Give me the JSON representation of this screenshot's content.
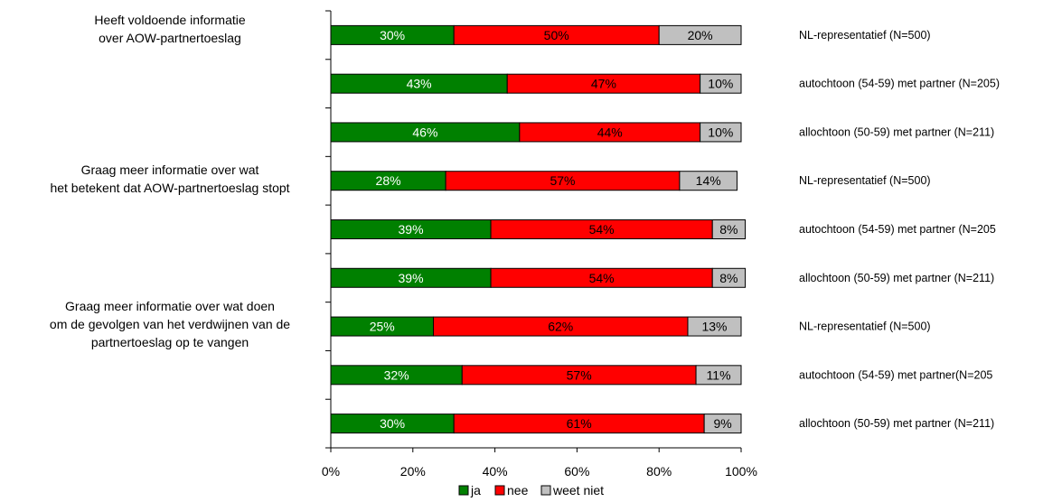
{
  "chart_data": {
    "type": "bar",
    "orientation": "horizontal",
    "stacked": "percent",
    "xlim": [
      0,
      100
    ],
    "x_ticks": [
      "0%",
      "20%",
      "40%",
      "60%",
      "80%",
      "100%"
    ],
    "question_labels": [
      [
        "Heeft voldoende informatie",
        "over AOW-partnertoeslag"
      ],
      [
        "Graag meer informatie over wat",
        "het betekent dat AOW-partnertoeslag stopt"
      ],
      [
        "Graag meer informatie over wat doen",
        "om de gevolgen van het verdwijnen van de",
        "partnertoeslag op te vangen"
      ]
    ],
    "categories": [
      "NL-representatief (N=500)",
      "autochtoon (54-59) met partner (N=205)",
      "allochtoon (50-59) met partner (N=211)",
      "NL-representatief  (N=500)",
      "autochtoon (54-59) met partner (N=205",
      "allochtoon (50-59) met partner (N=211)",
      "NL-representatief (N=500)",
      "autochtoon (54-59) met partner(N=205",
      "allochtoon (50-59) met partner (N=211)"
    ],
    "series": [
      {
        "name": "ja",
        "color": "#008000",
        "label_color": "#ffffff",
        "values": [
          30,
          43,
          46,
          28,
          39,
          39,
          25,
          32,
          30
        ]
      },
      {
        "name": "nee",
        "color": "#ff0000",
        "label_color": "#000000",
        "values": [
          50,
          47,
          44,
          57,
          54,
          54,
          62,
          57,
          61
        ]
      },
      {
        "name": "weet niet",
        "color": "#c0c0c0",
        "label_color": "#000000",
        "values": [
          20,
          10,
          10,
          14,
          8,
          8,
          13,
          11,
          9
        ]
      }
    ],
    "legend_position": "bottom",
    "grid": false
  }
}
